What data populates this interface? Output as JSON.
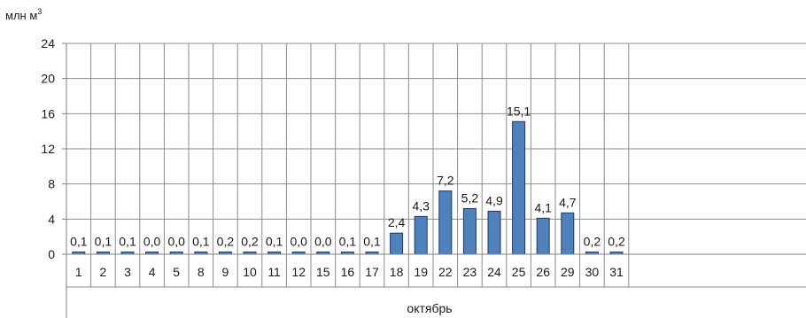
{
  "chart_data": {
    "type": "bar",
    "unit_label": "млн м",
    "unit_superscript": "3",
    "group_label": "октябрь",
    "categories": [
      "1",
      "2",
      "3",
      "4",
      "5",
      "8",
      "9",
      "10",
      "11",
      "12",
      "15",
      "16",
      "17",
      "18",
      "19",
      "22",
      "23",
      "24",
      "25",
      "26",
      "29",
      "30",
      "31"
    ],
    "values": [
      0.1,
      0.1,
      0.1,
      0.0,
      0.0,
      0.1,
      0.2,
      0.2,
      0.1,
      0.0,
      0.0,
      0.1,
      0.1,
      2.4,
      4.3,
      7.2,
      5.2,
      4.9,
      15.1,
      4.1,
      4.7,
      0.2,
      0.2
    ],
    "data_labels": [
      "0,1",
      "0,1",
      "0,1",
      "0,0",
      "0,0",
      "0,1",
      "0,2",
      "0,2",
      "0,1",
      "0,0",
      "0,0",
      "0,1",
      "0,1",
      "2,4",
      "4,3",
      "7,2",
      "5,2",
      "4,9",
      "15,1",
      "4,1",
      "4,7",
      "0,2",
      "0,2"
    ],
    "y_ticks": [
      "0",
      "4",
      "8",
      "12",
      "16",
      "20",
      "24"
    ],
    "ylim": [
      0,
      24
    ],
    "grid": true,
    "bar_color": "#4f81bd",
    "bar_edge_color": "#1f3864"
  }
}
